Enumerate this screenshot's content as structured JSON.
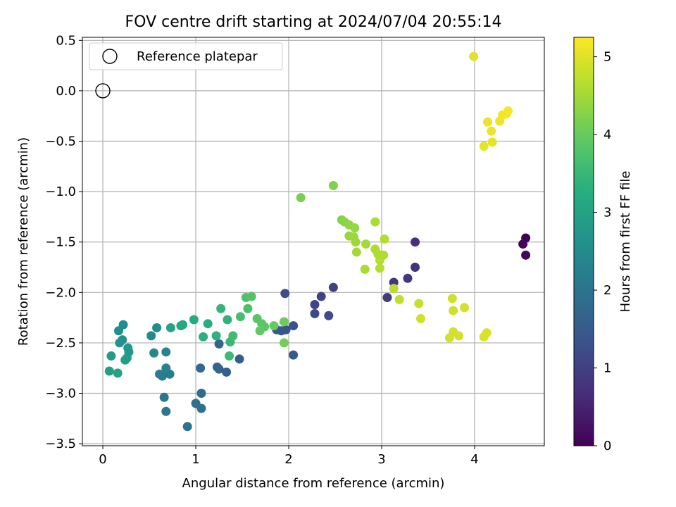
{
  "chart_data": {
    "type": "scatter",
    "title": "FOV centre drift starting at 2024/07/04 20:55:14",
    "xlabel": "Angular distance from reference (arcmin)",
    "ylabel": "Rotation from reference (arcmin)",
    "xlim": [
      -0.22,
      4.75
    ],
    "ylim": [
      -3.52,
      0.53
    ],
    "xticks": [
      0,
      1,
      2,
      3,
      4
    ],
    "xtick_labels": [
      "0",
      "1",
      "2",
      "3",
      "4"
    ],
    "yticks": [
      0.5,
      0.0,
      -0.5,
      -1.0,
      -1.5,
      -2.0,
      -2.5,
      -3.0,
      -3.5
    ],
    "ytick_labels": [
      "0.5",
      "0.0",
      "−0.5",
      "−1.0",
      "−1.5",
      "−2.0",
      "−2.5",
      "−3.0",
      "−3.5"
    ],
    "grid": true,
    "legend": {
      "placement": "top-left",
      "entries": [
        "Reference platepar"
      ]
    },
    "reference": {
      "x": 0,
      "y": 0
    },
    "colorbar": {
      "label": "Hours from first FF file",
      "colormap": "viridis",
      "range": [
        0,
        5.25
      ],
      "ticks": [
        0,
        1,
        2,
        3,
        4,
        5
      ],
      "tick_labels": [
        "0",
        "1",
        "2",
        "3",
        "4",
        "5"
      ]
    },
    "points": [
      [
        4.55,
        -1.46,
        0.0
      ],
      [
        4.52,
        -1.52,
        0.05
      ],
      [
        4.55,
        -1.63,
        0.1
      ],
      [
        3.36,
        -1.5,
        0.7
      ],
      [
        3.36,
        -1.75,
        0.75
      ],
      [
        3.28,
        -1.86,
        0.8
      ],
      [
        3.13,
        -1.9,
        0.85
      ],
      [
        3.06,
        -2.05,
        0.9
      ],
      [
        2.48,
        -1.95,
        1.0
      ],
      [
        2.35,
        -2.04,
        1.05
      ],
      [
        2.28,
        -2.12,
        1.1
      ],
      [
        2.28,
        -2.21,
        1.15
      ],
      [
        2.43,
        -2.23,
        1.2
      ],
      [
        1.96,
        -2.01,
        1.25
      ],
      [
        2.05,
        -2.33,
        1.3
      ],
      [
        1.97,
        -2.37,
        1.35
      ],
      [
        1.92,
        -2.38,
        1.4
      ],
      [
        1.87,
        -2.37,
        1.45
      ],
      [
        2.05,
        -2.62,
        1.5
      ],
      [
        1.47,
        -2.66,
        1.55
      ],
      [
        1.33,
        -2.79,
        1.6
      ],
      [
        1.25,
        -2.76,
        1.65
      ],
      [
        1.23,
        -2.74,
        1.7
      ],
      [
        1.25,
        -2.51,
        1.75
      ],
      [
        1.05,
        -2.75,
        1.8
      ],
      [
        1.06,
        -3.0,
        1.85
      ],
      [
        1.0,
        -3.1,
        1.9
      ],
      [
        1.06,
        -3.15,
        1.95
      ],
      [
        0.91,
        -3.33,
        2.0
      ],
      [
        0.68,
        -3.18,
        2.05
      ],
      [
        0.66,
        -3.04,
        2.1
      ],
      [
        0.72,
        -2.81,
        2.15
      ],
      [
        0.64,
        -2.83,
        2.2
      ],
      [
        0.61,
        -2.81,
        2.25
      ],
      [
        0.68,
        -2.75,
        2.3
      ],
      [
        0.68,
        -2.59,
        2.35
      ],
      [
        0.55,
        -2.6,
        2.4
      ],
      [
        0.52,
        -2.43,
        2.45
      ],
      [
        0.58,
        -2.35,
        2.5
      ],
      [
        0.22,
        -2.32,
        2.55
      ],
      [
        0.17,
        -2.38,
        2.6
      ],
      [
        0.21,
        -2.47,
        2.65
      ],
      [
        0.18,
        -2.5,
        2.7
      ],
      [
        0.27,
        -2.55,
        2.75
      ],
      [
        0.28,
        -2.59,
        2.8
      ],
      [
        0.26,
        -2.65,
        2.85
      ],
      [
        0.24,
        -2.67,
        2.9
      ],
      [
        0.09,
        -2.63,
        2.9
      ],
      [
        0.07,
        -2.78,
        2.95
      ],
      [
        0.16,
        -2.8,
        3.0
      ],
      [
        0.73,
        -2.35,
        3.05
      ],
      [
        0.84,
        -2.33,
        3.1
      ],
      [
        0.86,
        -2.32,
        3.15
      ],
      [
        0.98,
        -2.27,
        3.2
      ],
      [
        1.13,
        -2.31,
        3.25
      ],
      [
        1.08,
        -2.44,
        3.3
      ],
      [
        1.22,
        -2.43,
        3.35
      ],
      [
        1.34,
        -2.27,
        3.4
      ],
      [
        1.27,
        -2.16,
        3.45
      ],
      [
        1.37,
        -2.49,
        3.5
      ],
      [
        1.36,
        -2.63,
        3.55
      ],
      [
        1.4,
        -2.43,
        3.6
      ],
      [
        1.48,
        -2.24,
        3.65
      ],
      [
        1.56,
        -2.16,
        3.7
      ],
      [
        1.54,
        -2.05,
        3.75
      ],
      [
        1.6,
        -2.04,
        3.8
      ],
      [
        1.66,
        -2.26,
        3.85
      ],
      [
        1.71,
        -2.31,
        3.9
      ],
      [
        1.74,
        -2.34,
        3.9
      ],
      [
        1.69,
        -2.38,
        3.95
      ],
      [
        1.84,
        -2.33,
        4.0
      ],
      [
        1.95,
        -2.29,
        4.05
      ],
      [
        1.95,
        -2.5,
        4.1
      ],
      [
        2.13,
        -1.06,
        4.15
      ],
      [
        2.48,
        -0.94,
        4.2
      ],
      [
        2.57,
        -1.28,
        4.25
      ],
      [
        2.6,
        -1.3,
        4.3
      ],
      [
        2.65,
        -1.33,
        4.35
      ],
      [
        2.71,
        -1.36,
        4.4
      ],
      [
        2.65,
        -1.44,
        4.4
      ],
      [
        2.7,
        -1.45,
        4.45
      ],
      [
        2.72,
        -1.5,
        4.45
      ],
      [
        2.73,
        -1.6,
        4.5
      ],
      [
        2.83,
        -1.52,
        4.5
      ],
      [
        2.82,
        -1.77,
        4.55
      ],
      [
        2.93,
        -1.3,
        4.55
      ],
      [
        2.93,
        -1.57,
        4.6
      ],
      [
        2.96,
        -1.62,
        4.6
      ],
      [
        2.98,
        -1.68,
        4.65
      ],
      [
        2.98,
        -1.76,
        4.65
      ],
      [
        3.02,
        -1.63,
        4.6
      ],
      [
        3.03,
        -1.47,
        4.65
      ],
      [
        3.13,
        -1.96,
        4.7
      ],
      [
        3.19,
        -2.07,
        4.75
      ],
      [
        3.4,
        -2.11,
        4.8
      ],
      [
        3.42,
        -2.26,
        4.85
      ],
      [
        3.76,
        -2.06,
        4.85
      ],
      [
        3.77,
        -2.18,
        4.85
      ],
      [
        3.89,
        -2.15,
        4.9
      ],
      [
        3.77,
        -2.39,
        4.9
      ],
      [
        3.83,
        -2.43,
        4.9
      ],
      [
        3.73,
        -2.45,
        4.9
      ],
      [
        4.1,
        -2.44,
        4.95
      ],
      [
        4.13,
        -2.4,
        4.95
      ],
      [
        3.99,
        0.34,
        5.0
      ],
      [
        4.1,
        -0.55,
        5.05
      ],
      [
        4.19,
        -0.51,
        5.05
      ],
      [
        4.14,
        -0.31,
        5.1
      ],
      [
        4.18,
        -0.4,
        5.1
      ],
      [
        4.27,
        -0.3,
        5.15
      ],
      [
        4.3,
        -0.24,
        5.15
      ],
      [
        4.34,
        -0.23,
        5.2
      ],
      [
        4.36,
        -0.2,
        5.2
      ]
    ]
  }
}
